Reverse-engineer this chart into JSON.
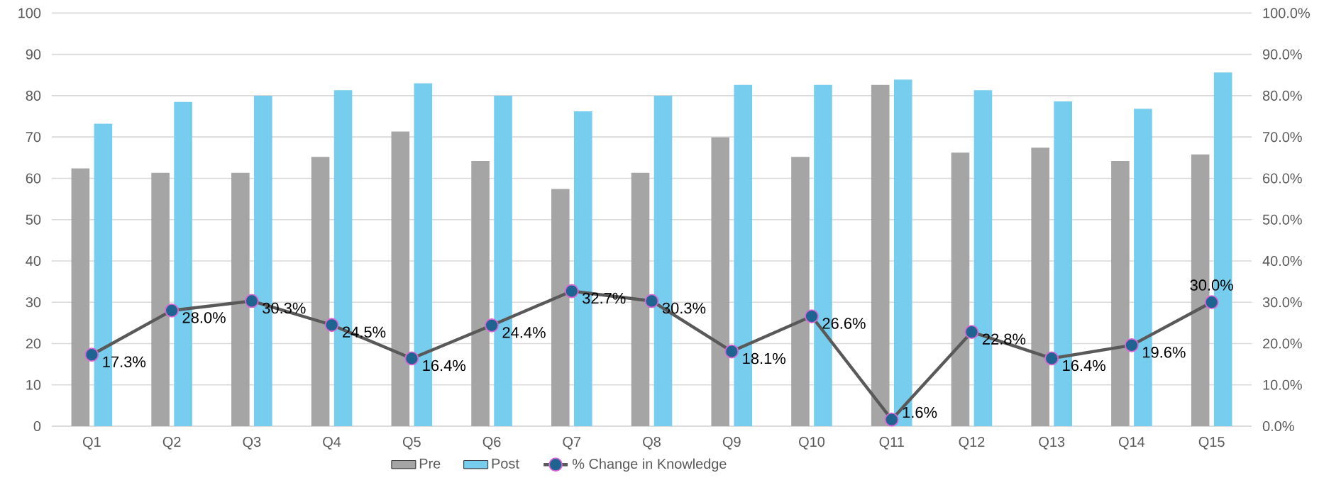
{
  "chart_data": {
    "type": "bar",
    "categories": [
      "Q1",
      "Q2",
      "Q3",
      "Q4",
      "Q5",
      "Q6",
      "Q7",
      "Q8",
      "Q9",
      "Q10",
      "Q11",
      "Q12",
      "Q13",
      "Q14",
      "Q15"
    ],
    "series": [
      {
        "name": "Pre",
        "color": "#a5a5a5",
        "values": [
          62.4,
          61.3,
          61.3,
          65.2,
          71.3,
          64.2,
          57.4,
          61.3,
          69.9,
          65.2,
          82.6,
          66.2,
          67.4,
          64.2,
          65.8
        ]
      },
      {
        "name": "Post",
        "color": "#76cdee",
        "values": [
          73.2,
          78.5,
          80,
          81.3,
          83,
          80,
          76.2,
          80,
          82.6,
          82.6,
          83.9,
          81.3,
          78.6,
          76.8,
          85.6
        ]
      },
      {
        "name": "% Change in Knowledge",
        "type": "line",
        "axis": "y2",
        "color": "#595959",
        "marker": "circle",
        "values": [
          17.3,
          28.0,
          30.3,
          24.5,
          16.4,
          24.4,
          32.7,
          30.3,
          18.1,
          26.6,
          1.6,
          22.8,
          16.4,
          19.6,
          30.0
        ],
        "value_labels": [
          "17.3%",
          "28.0%",
          "30.3%",
          "24.5%",
          "16.4%",
          "24.4%",
          "32.7%",
          "30.3%",
          "18.1%",
          "26.6%",
          "1.6%",
          "22.8%",
          "16.4%",
          "19.6%",
          "30.0%"
        ]
      }
    ],
    "ylim": [
      0,
      100
    ],
    "yticks": [
      0,
      10,
      20,
      30,
      40,
      50,
      60,
      70,
      80,
      90,
      100
    ],
    "y2lim": [
      0,
      100
    ],
    "y2ticks": [
      {
        "value": 0,
        "label": "0.0%"
      },
      {
        "value": 10,
        "label": "10.0%"
      },
      {
        "value": 20,
        "label": "20.0%"
      },
      {
        "value": 30,
        "label": "30.0%"
      },
      {
        "value": 40,
        "label": "40.0%"
      },
      {
        "value": 50,
        "label": "50.0%"
      },
      {
        "value": 60,
        "label": "60.0%"
      },
      {
        "value": 70,
        "label": "70.0%"
      },
      {
        "value": 80,
        "label": "80.0%"
      },
      {
        "value": 90,
        "label": "90.0%"
      },
      {
        "value": 100,
        "label": "100.0%"
      }
    ],
    "grid": "y",
    "legend": "bottom"
  }
}
